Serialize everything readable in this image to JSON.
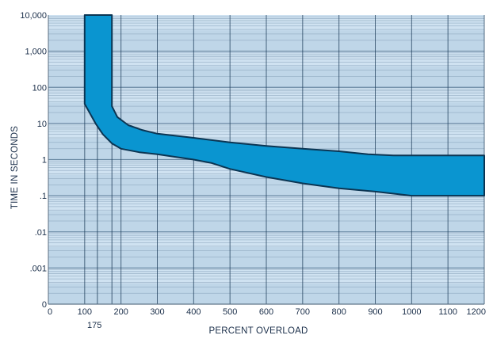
{
  "chart_data": {
    "type": "area",
    "title": "",
    "xlabel": "PERCENT OVERLOAD",
    "ylabel": "TIME IN SECONDS",
    "x_scale": "linear",
    "y_scale": "log",
    "xlim": [
      0,
      1200
    ],
    "x_ticks": [
      {
        "value": 0,
        "label": "0"
      },
      {
        "value": 100,
        "label": "100"
      },
      {
        "value": 200,
        "label": "200"
      },
      {
        "value": 300,
        "label": "300"
      },
      {
        "value": 400,
        "label": "400"
      },
      {
        "value": 500,
        "label": "500"
      },
      {
        "value": 600,
        "label": "600"
      },
      {
        "value": 700,
        "label": "700"
      },
      {
        "value": 800,
        "label": "800"
      },
      {
        "value": 900,
        "label": "900"
      },
      {
        "value": 1000,
        "label": "1000"
      },
      {
        "value": 1100,
        "label": "1100"
      },
      {
        "value": 1200,
        "label": "1200"
      }
    ],
    "x_annotation": {
      "value": 175,
      "label": "175"
    },
    "x_extra_gridlines": [
      135,
      175
    ],
    "y_ticks": [
      {
        "value": 10000,
        "label": "10,000"
      },
      {
        "value": 1000,
        "label": "1,000"
      },
      {
        "value": 100,
        "label": "100"
      },
      {
        "value": 10,
        "label": "10"
      },
      {
        "value": 1,
        "label": "1"
      },
      {
        "value": 0.1,
        "label": ".1"
      },
      {
        "value": 0.01,
        "label": ".01"
      },
      {
        "value": 0.001,
        "label": ".001"
      },
      {
        "value": 0.0001,
        "label": "0"
      }
    ],
    "grid": true,
    "band": {
      "left_edge_x": 100,
      "right_edge_x": 175,
      "upper": [
        {
          "x": 175,
          "y": 10000
        },
        {
          "x": 175,
          "y": 30
        },
        {
          "x": 190,
          "y": 15
        },
        {
          "x": 220,
          "y": 9
        },
        {
          "x": 260,
          "y": 6.5
        },
        {
          "x": 300,
          "y": 5.2
        },
        {
          "x": 400,
          "y": 4
        },
        {
          "x": 500,
          "y": 3
        },
        {
          "x": 600,
          "y": 2.4
        },
        {
          "x": 700,
          "y": 2
        },
        {
          "x": 800,
          "y": 1.7
        },
        {
          "x": 880,
          "y": 1.4
        },
        {
          "x": 950,
          "y": 1.3
        },
        {
          "x": 1200,
          "y": 1.3
        }
      ],
      "lower": [
        {
          "x": 100,
          "y": 10000
        },
        {
          "x": 100,
          "y": 35
        },
        {
          "x": 130,
          "y": 10
        },
        {
          "x": 150,
          "y": 5
        },
        {
          "x": 175,
          "y": 2.8
        },
        {
          "x": 200,
          "y": 2
        },
        {
          "x": 250,
          "y": 1.6
        },
        {
          "x": 300,
          "y": 1.4
        },
        {
          "x": 400,
          "y": 1
        },
        {
          "x": 450,
          "y": 0.8
        },
        {
          "x": 500,
          "y": 0.55
        },
        {
          "x": 600,
          "y": 0.33
        },
        {
          "x": 700,
          "y": 0.22
        },
        {
          "x": 800,
          "y": 0.16
        },
        {
          "x": 900,
          "y": 0.13
        },
        {
          "x": 1000,
          "y": 0.1
        },
        {
          "x": 1200,
          "y": 0.1
        }
      ]
    },
    "colors": {
      "background": "#d9ecf8",
      "band_light": "#cfe2f1",
      "band_dark": "#a9c4da",
      "band_fill": "#0a95d0",
      "band_edge": "#0b3553",
      "grid_vertical": "#1e3d5a",
      "text": "#1b2f4a"
    }
  }
}
